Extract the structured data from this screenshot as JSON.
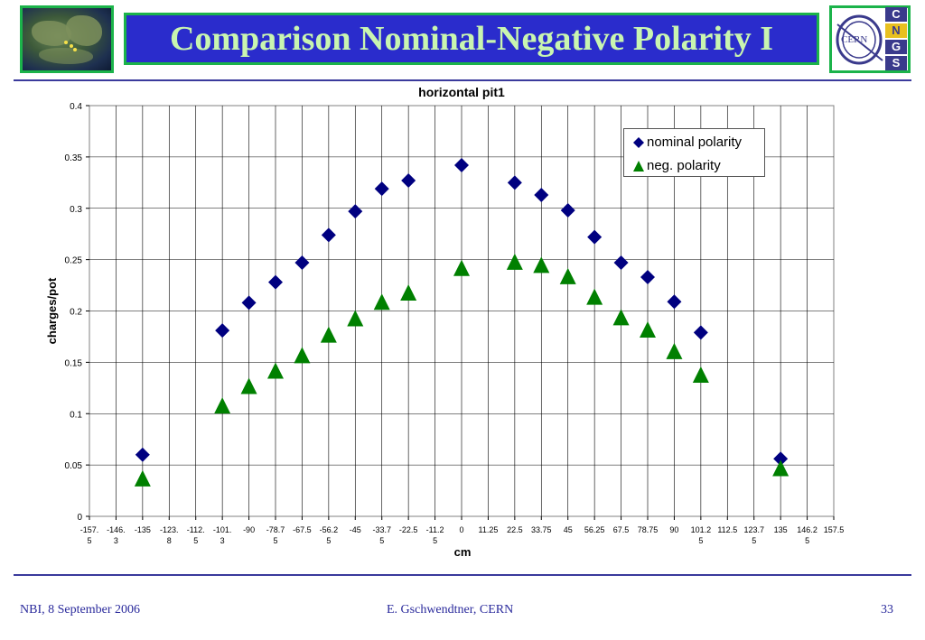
{
  "header": {
    "title": "Comparison Nominal-Negative Polarity I",
    "cern_logo_text": "CERN",
    "cngs_letters": [
      "C",
      "N",
      "G",
      "S"
    ]
  },
  "footer": {
    "left": "NBI, 8 September 2006",
    "center": "E. Gschwendtner, CERN",
    "right": "33"
  },
  "colors": {
    "title_bg": "#2a2ccc",
    "title_text": "#c9f5b0",
    "frame_green": "#1bb34a",
    "nominal": "#000080",
    "negative": "#008000",
    "footer_text": "#2a2a9c"
  },
  "chart_data": {
    "type": "scatter",
    "title": "horizontal pit1",
    "xlabel": "cm",
    "ylabel": "charges/pot",
    "categories": [
      "-157.5",
      "-146.3",
      "-135",
      "-123.8",
      "-112.5",
      "-101.3",
      "-90",
      "-78.75",
      "-67.5",
      "-56.25",
      "-45",
      "-33.75",
      "-22.5",
      "-11.25",
      "0",
      "11.25",
      "22.5",
      "33.75",
      "45",
      "56.25",
      "67.5",
      "78.75",
      "90",
      "101.25",
      "112.5",
      "123.75",
      "135",
      "146.25",
      "157.5"
    ],
    "ylim": [
      0,
      0.4
    ],
    "yticks": [
      "0",
      "0.05",
      "0.1",
      "0.15",
      "0.2",
      "0.25",
      "0.3",
      "0.35",
      "0.4"
    ],
    "grid": true,
    "legend_position": "top-right",
    "series": [
      {
        "name": "nominal polarity",
        "marker": "diamond",
        "color": "#000080",
        "values": [
          null,
          null,
          0.06,
          null,
          null,
          0.181,
          0.208,
          0.228,
          0.247,
          0.274,
          0.297,
          0.319,
          0.327,
          null,
          0.342,
          null,
          0.325,
          0.313,
          0.298,
          0.272,
          0.247,
          0.233,
          0.209,
          0.179,
          null,
          null,
          0.056,
          null,
          null
        ]
      },
      {
        "name": "neg. polarity",
        "marker": "triangle",
        "color": "#008000",
        "values": [
          null,
          null,
          0.037,
          null,
          null,
          0.108,
          0.127,
          0.142,
          0.157,
          0.177,
          0.193,
          0.209,
          0.218,
          null,
          0.242,
          null,
          0.248,
          0.245,
          0.234,
          0.214,
          0.194,
          0.182,
          0.161,
          0.138,
          null,
          null,
          0.047,
          null,
          null
        ]
      }
    ]
  }
}
